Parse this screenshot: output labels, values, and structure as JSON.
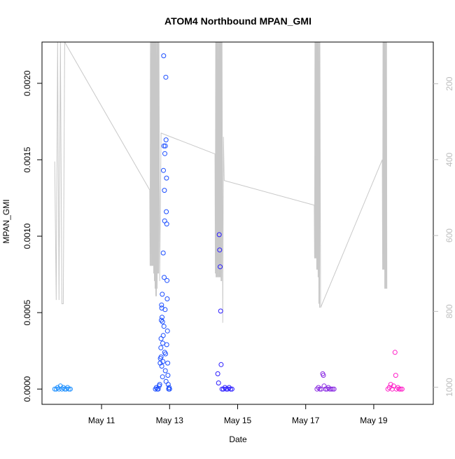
{
  "chart_data": {
    "type": "scatter",
    "title": "ATOM4 Northbound MPAN_GMI",
    "xlabel": "Date",
    "ylabel": "MPAN_GMI",
    "x_unit": "date",
    "xlim": [
      "2016-05-09T06:00",
      "2016-05-20T18:00"
    ],
    "ylim": [
      -0.0001,
      0.00227
    ],
    "x_ticks": [
      {
        "value": "2016-05-11",
        "label": "May 11"
      },
      {
        "value": "2016-05-13",
        "label": "May 13"
      },
      {
        "value": "2016-05-15",
        "label": "May 15"
      },
      {
        "value": "2016-05-17",
        "label": "May 17"
      },
      {
        "value": "2016-05-19",
        "label": "May 19"
      }
    ],
    "y_ticks": [
      {
        "value": 0.0,
        "label": "0.0000"
      },
      {
        "value": 0.0005,
        "label": "0.0005"
      },
      {
        "value": 0.001,
        "label": "0.0010"
      },
      {
        "value": 0.0015,
        "label": "0.0015"
      },
      {
        "value": 0.002,
        "label": "0.0020"
      }
    ],
    "y2_axis": {
      "reversed": true,
      "range": [
        90,
        1045
      ],
      "ticks": [
        {
          "value": 200,
          "label": "200"
        },
        {
          "value": 400,
          "label": "400"
        },
        {
          "value": 600,
          "label": "600"
        },
        {
          "value": 800,
          "label": "800"
        },
        {
          "value": 1000,
          "label": "1000"
        }
      ],
      "color": "#bdbdbd"
    },
    "grid": false,
    "legend": "none",
    "series": [
      {
        "color": "#1e90ff",
        "points": [
          [
            "2016-05-09T15:00",
            0.0
          ],
          [
            "2016-05-09T16:00",
            0.0
          ],
          [
            "2016-05-09T17:00",
            1e-05
          ],
          [
            "2016-05-09T18:00",
            0.0
          ],
          [
            "2016-05-09T19:00",
            2e-05
          ],
          [
            "2016-05-09T20:00",
            0.0
          ],
          [
            "2016-05-09T21:00",
            1e-05
          ],
          [
            "2016-05-09T22:00",
            0.0
          ],
          [
            "2016-05-09T23:00",
            0.0
          ],
          [
            "2016-05-10T00:00",
            1e-05
          ],
          [
            "2016-05-10T01:00",
            0.0
          ],
          [
            "2016-05-10T02:00",
            0.0
          ]
        ]
      },
      {
        "color": "#1a4dff",
        "points": [
          [
            "2016-05-12T14:00",
            0.0
          ],
          [
            "2016-05-12T14:40",
            1e-05
          ],
          [
            "2016-05-12T15:20",
            0.0
          ],
          [
            "2016-05-12T16:00",
            0.0
          ],
          [
            "2016-05-12T16:40",
            2e-05
          ],
          [
            "2016-05-12T17:20",
            0.00017
          ],
          [
            "2016-05-12T17:30",
            0.0002
          ],
          [
            "2016-05-12T17:50",
            0.00027
          ],
          [
            "2016-05-12T18:00",
            0.00033
          ],
          [
            "2016-05-12T18:10",
            0.00045
          ],
          [
            "2016-05-12T18:20",
            0.00055
          ],
          [
            "2016-05-12T18:30",
            0.00053
          ],
          [
            "2016-05-12T18:40",
            0.00047
          ],
          [
            "2016-05-12T18:50",
            0.00062
          ],
          [
            "2016-05-12T19:00",
            0.00044
          ],
          [
            "2016-05-12T19:10",
            0.0003
          ],
          [
            "2016-05-12T19:20",
            0.00018
          ],
          [
            "2016-05-12T19:30",
            0.00089
          ],
          [
            "2016-05-12T19:40",
            0.00143
          ],
          [
            "2016-05-12T19:50",
            0.00218
          ],
          [
            "2016-05-12T20:00",
            0.00159
          ],
          [
            "2016-05-12T20:10",
            0.00073
          ],
          [
            "2016-05-12T20:20",
            0.0013
          ],
          [
            "2016-05-12T20:30",
            0.0011
          ],
          [
            "2016-05-12T20:40",
            0.00154
          ],
          [
            "2016-05-12T20:50",
            0.00052
          ],
          [
            "2016-05-12T21:00",
            0.00159
          ],
          [
            "2016-05-12T21:10",
            0.00023
          ],
          [
            "2016-05-12T21:20",
            0.00204
          ],
          [
            "2016-05-12T21:30",
            0.00163
          ],
          [
            "2016-05-12T21:40",
            0.00116
          ],
          [
            "2016-05-12T21:50",
            0.00138
          ],
          [
            "2016-05-12T22:00",
            0.00108
          ],
          [
            "2016-05-12T22:10",
            0.00071
          ],
          [
            "2016-05-12T22:20",
            0.00059
          ],
          [
            "2016-05-12T22:30",
            0.00038
          ],
          [
            "2016-05-12T22:40",
            0.00017
          ],
          [
            "2016-05-12T22:50",
            9e-05
          ],
          [
            "2016-05-12T23:00",
            3e-05
          ],
          [
            "2016-05-12T23:20",
            0.0
          ],
          [
            "2016-05-12T23:40",
            1e-05
          ],
          [
            "2016-05-13T00:00",
            0.0
          ],
          [
            "2016-05-12T18:00",
            0.00021
          ],
          [
            "2016-05-12T18:30",
            0.00015
          ],
          [
            "2016-05-12T19:00",
            8e-05
          ],
          [
            "2016-05-12T19:30",
            0.00035
          ],
          [
            "2016-05-12T20:00",
            0.00041
          ],
          [
            "2016-05-12T20:30",
            0.00024
          ],
          [
            "2016-05-12T21:00",
            0.00012
          ],
          [
            "2016-05-12T21:30",
            5e-05
          ],
          [
            "2016-05-12T17:00",
            3e-05
          ],
          [
            "2016-05-12T22:00",
            0.00029
          ]
        ]
      },
      {
        "color": "#2a1bff",
        "points": [
          [
            "2016-05-14T10:00",
            0.0001
          ],
          [
            "2016-05-14T10:30",
            4e-05
          ],
          [
            "2016-05-14T11:00",
            0.00101
          ],
          [
            "2016-05-14T11:20",
            0.00091
          ],
          [
            "2016-05-14T11:40",
            0.0008
          ],
          [
            "2016-05-14T12:00",
            0.00051
          ],
          [
            "2016-05-14T12:20",
            0.00016
          ],
          [
            "2016-05-14T13:00",
            0.0
          ],
          [
            "2016-05-14T14:00",
            0.0
          ],
          [
            "2016-05-14T15:00",
            1e-05
          ],
          [
            "2016-05-14T16:00",
            0.0
          ],
          [
            "2016-05-14T17:00",
            0.0
          ],
          [
            "2016-05-14T18:00",
            1e-05
          ],
          [
            "2016-05-14T19:00",
            0.0
          ],
          [
            "2016-05-14T20:00",
            0.0
          ]
        ]
      },
      {
        "color": "#8a2be2",
        "points": [
          [
            "2016-05-17T08:00",
            0.0
          ],
          [
            "2016-05-17T09:00",
            1e-05
          ],
          [
            "2016-05-17T10:00",
            0.0
          ],
          [
            "2016-05-17T11:00",
            0.0
          ],
          [
            "2016-05-17T12:00",
            0.0001
          ],
          [
            "2016-05-17T12:30",
            9e-05
          ],
          [
            "2016-05-17T13:00",
            2e-05
          ],
          [
            "2016-05-17T14:00",
            0.0
          ],
          [
            "2016-05-17T15:00",
            0.0
          ],
          [
            "2016-05-17T16:00",
            1e-05
          ],
          [
            "2016-05-17T17:00",
            0.0
          ],
          [
            "2016-05-17T18:00",
            0.0
          ],
          [
            "2016-05-17T19:00",
            0.0
          ],
          [
            "2016-05-17T20:00",
            0.0
          ]
        ]
      },
      {
        "color": "#ff1fc8",
        "points": [
          [
            "2016-05-19T10:00",
            0.0
          ],
          [
            "2016-05-19T11:00",
            1e-05
          ],
          [
            "2016-05-19T12:00",
            3e-05
          ],
          [
            "2016-05-19T13:00",
            0.0
          ],
          [
            "2016-05-19T14:00",
            2e-05
          ],
          [
            "2016-05-19T15:00",
            0.00024
          ],
          [
            "2016-05-19T15:30",
            9e-05
          ],
          [
            "2016-05-19T16:00",
            0.0
          ],
          [
            "2016-05-19T17:00",
            1e-05
          ],
          [
            "2016-05-19T18:00",
            0.0
          ],
          [
            "2016-05-19T19:00",
            0.0
          ],
          [
            "2016-05-19T20:00",
            0.0
          ]
        ]
      }
    ],
    "depth_line": {
      "color": "#c8c8c8",
      "axis": "y2",
      "points": [
        [
          "2016-05-09T15:00",
          405
        ],
        [
          "2016-05-09T16:00",
          770
        ],
        [
          "2016-05-09T17:00",
          90
        ],
        [
          "2016-05-09T18:00",
          770
        ],
        [
          "2016-05-09T19:00",
          90
        ],
        [
          "2016-05-09T20:00",
          780
        ],
        [
          "2016-05-09T21:00",
          780
        ],
        [
          "2016-05-09T22:00",
          90
        ],
        [
          "2016-05-12T10:00",
          480
        ],
        [
          "2016-05-12T10:15",
          680
        ],
        [
          "2016-05-12T10:30",
          90
        ],
        [
          "2016-05-12T10:45",
          680
        ],
        [
          "2016-05-12T11:00",
          90
        ],
        [
          "2016-05-12T11:15",
          680
        ],
        [
          "2016-05-12T11:30",
          90
        ],
        [
          "2016-05-12T11:45",
          680
        ],
        [
          "2016-05-12T12:00",
          90
        ],
        [
          "2016-05-12T12:15",
          680
        ],
        [
          "2016-05-12T12:30",
          90
        ],
        [
          "2016-05-12T12:45",
          700
        ],
        [
          "2016-05-12T13:00",
          90
        ],
        [
          "2016-05-12T13:15",
          720
        ],
        [
          "2016-05-12T13:30",
          90
        ],
        [
          "2016-05-12T13:45",
          740
        ],
        [
          "2016-05-12T14:00",
          90
        ],
        [
          "2016-05-12T14:15",
          760
        ],
        [
          "2016-05-12T14:30",
          90
        ],
        [
          "2016-05-12T14:45",
          760
        ],
        [
          "2016-05-12T15:00",
          90
        ],
        [
          "2016-05-12T15:15",
          740
        ],
        [
          "2016-05-12T15:30",
          90
        ],
        [
          "2016-05-12T15:45",
          700
        ],
        [
          "2016-05-12T16:00",
          90
        ],
        [
          "2016-05-12T16:15",
          700
        ],
        [
          "2016-05-12T16:30",
          90
        ],
        [
          "2016-05-12T17:00",
          720
        ],
        [
          "2016-05-12T18:00",
          330
        ],
        [
          "2016-05-14T08:00",
          385
        ],
        [
          "2016-05-14T08:15",
          700
        ],
        [
          "2016-05-14T08:30",
          90
        ],
        [
          "2016-05-14T08:45",
          710
        ],
        [
          "2016-05-14T09:00",
          90
        ],
        [
          "2016-05-14T09:15",
          710
        ],
        [
          "2016-05-14T09:30",
          90
        ],
        [
          "2016-05-14T09:45",
          710
        ],
        [
          "2016-05-14T10:00",
          90
        ],
        [
          "2016-05-14T10:15",
          710
        ],
        [
          "2016-05-14T10:30",
          90
        ],
        [
          "2016-05-14T10:45",
          710
        ],
        [
          "2016-05-14T11:00",
          90
        ],
        [
          "2016-05-14T11:15",
          710
        ],
        [
          "2016-05-14T11:30",
          90
        ],
        [
          "2016-05-14T11:45",
          710
        ],
        [
          "2016-05-14T12:00",
          90
        ],
        [
          "2016-05-14T12:15",
          720
        ],
        [
          "2016-05-14T12:30",
          90
        ],
        [
          "2016-05-14T12:45",
          720
        ],
        [
          "2016-05-14T13:00",
          90
        ],
        [
          "2016-05-14T13:30",
          830
        ],
        [
          "2016-05-14T14:00",
          340
        ],
        [
          "2016-05-14T14:30",
          455
        ],
        [
          "2016-05-17T06:00",
          520
        ],
        [
          "2016-05-17T06:15",
          660
        ],
        [
          "2016-05-17T06:30",
          90
        ],
        [
          "2016-05-17T06:45",
          660
        ],
        [
          "2016-05-17T07:00",
          90
        ],
        [
          "2016-05-17T07:15",
          660
        ],
        [
          "2016-05-17T07:30",
          90
        ],
        [
          "2016-05-17T07:45",
          690
        ],
        [
          "2016-05-17T08:00",
          90
        ],
        [
          "2016-05-17T08:15",
          690
        ],
        [
          "2016-05-17T08:30",
          90
        ],
        [
          "2016-05-17T08:45",
          710
        ],
        [
          "2016-05-17T09:00",
          90
        ],
        [
          "2016-05-17T09:15",
          780
        ],
        [
          "2016-05-17T09:30",
          90
        ],
        [
          "2016-05-17T09:45",
          790
        ],
        [
          "2016-05-17T10:00",
          90
        ],
        [
          "2016-05-17T10:30",
          790
        ],
        [
          "2016-05-19T06:00",
          400
        ],
        [
          "2016-05-19T06:15",
          690
        ],
        [
          "2016-05-19T06:30",
          90
        ],
        [
          "2016-05-19T06:45",
          690
        ],
        [
          "2016-05-19T07:00",
          90
        ],
        [
          "2016-05-19T07:15",
          690
        ],
        [
          "2016-05-19T07:30",
          90
        ],
        [
          "2016-05-19T07:45",
          740
        ],
        [
          "2016-05-19T08:00",
          90
        ],
        [
          "2016-05-19T08:15",
          740
        ],
        [
          "2016-05-19T08:30",
          90
        ],
        [
          "2016-05-19T08:45",
          740
        ],
        [
          "2016-05-19T09:00",
          90
        ],
        [
          "2016-05-19T09:15",
          740
        ]
      ]
    }
  }
}
